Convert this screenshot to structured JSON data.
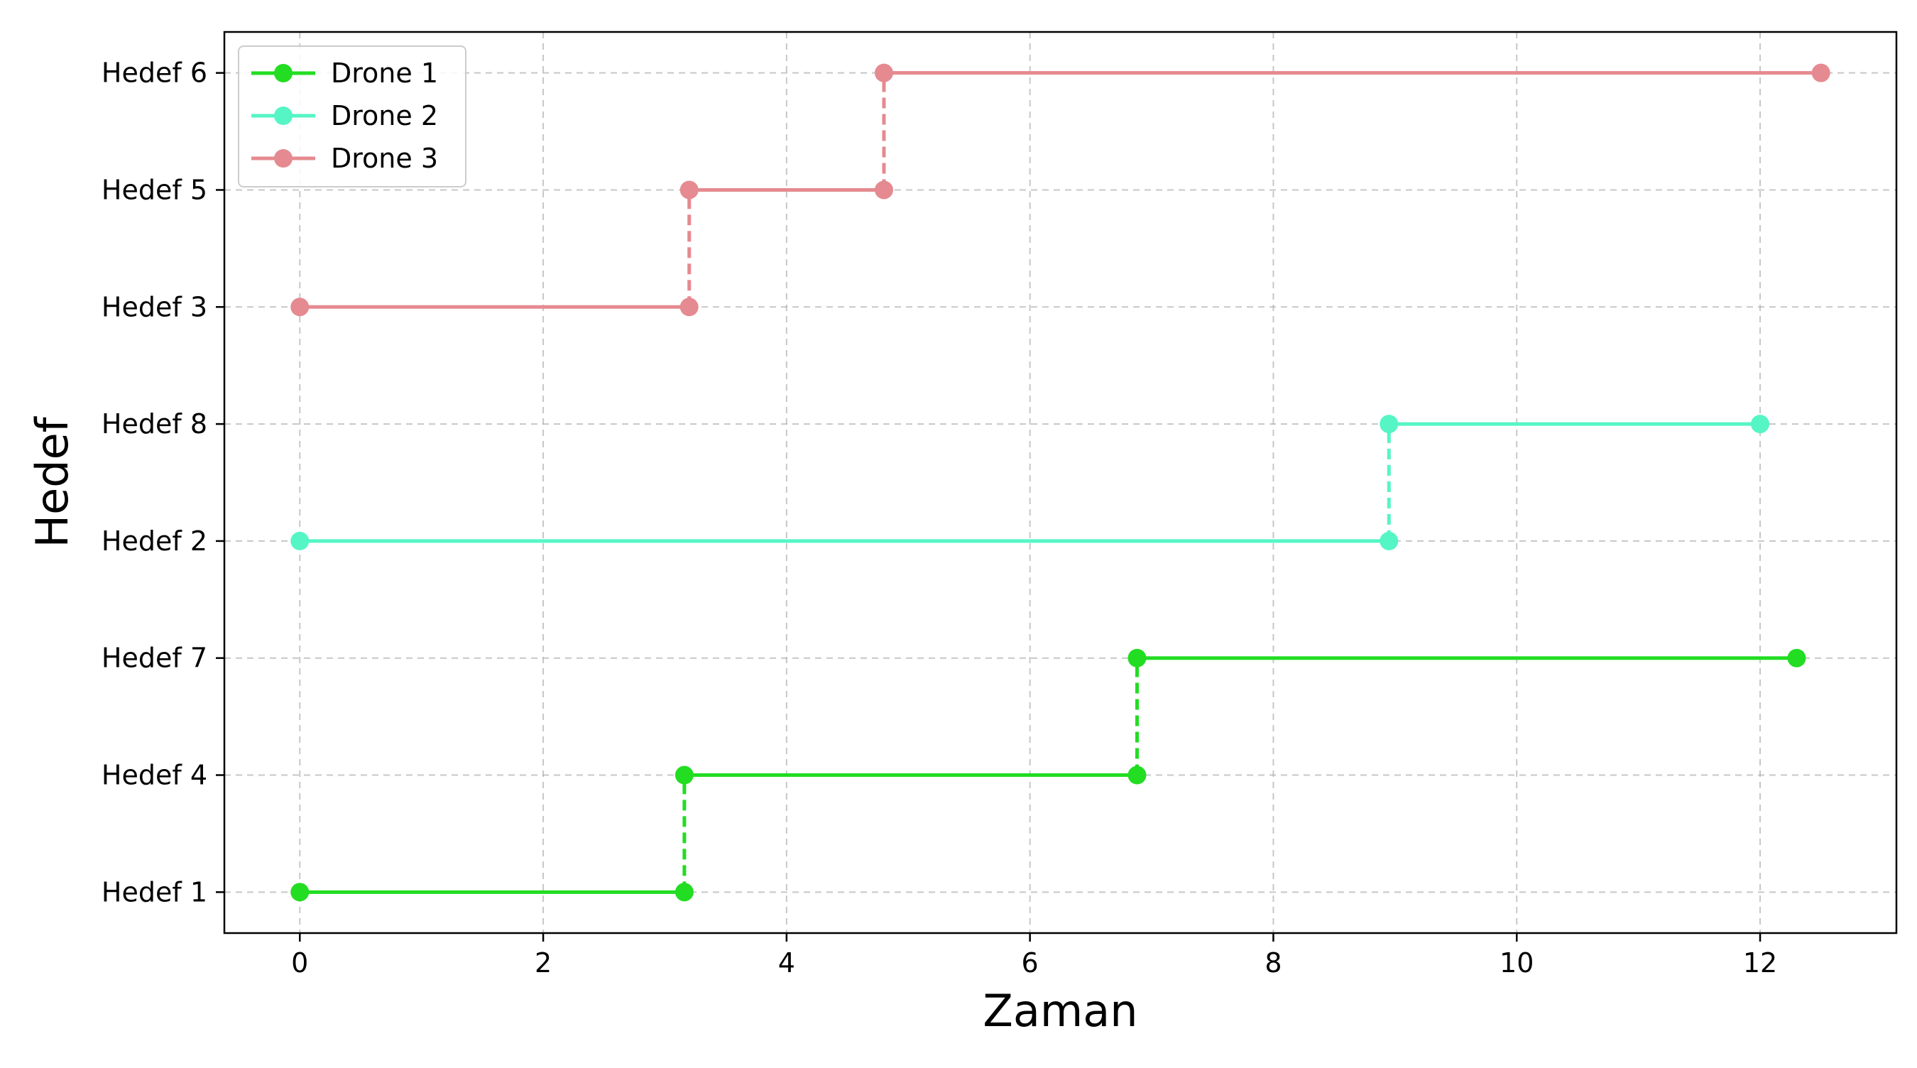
{
  "chart_data": {
    "type": "line",
    "title": "",
    "xlabel": "Zaman",
    "ylabel": "Hedef",
    "xlim": [
      -0.62,
      13.12
    ],
    "ylim": [
      -0.35,
      7.35
    ],
    "x_ticks": [
      0,
      2,
      4,
      6,
      8,
      10,
      12
    ],
    "y_categories": [
      "Hedef 1",
      "Hedef 4",
      "Hedef 7",
      "Hedef 2",
      "Hedef 8",
      "Hedef 3",
      "Hedef 5",
      "Hedef 6"
    ],
    "grid": true,
    "legend_position": "top-left",
    "series": [
      {
        "name": "Drone 1",
        "color": "#22dd22",
        "segments": [
          {
            "target": "Hedef 1",
            "start": 0.0,
            "end": 3.16
          },
          {
            "target": "Hedef 4",
            "start": 3.16,
            "end": 6.88
          },
          {
            "target": "Hedef 7",
            "start": 6.88,
            "end": 12.3
          }
        ]
      },
      {
        "name": "Drone 2",
        "color": "#55f5c5",
        "segments": [
          {
            "target": "Hedef 2",
            "start": 0.0,
            "end": 8.95
          },
          {
            "target": "Hedef 8",
            "start": 8.95,
            "end": 12.0
          }
        ]
      },
      {
        "name": "Drone 3",
        "color": "#e58a90",
        "segments": [
          {
            "target": "Hedef 3",
            "start": 0.0,
            "end": 3.2
          },
          {
            "target": "Hedef 5",
            "start": 3.2,
            "end": 4.8
          },
          {
            "target": "Hedef 6",
            "start": 4.8,
            "end": 12.5
          }
        ]
      }
    ]
  }
}
